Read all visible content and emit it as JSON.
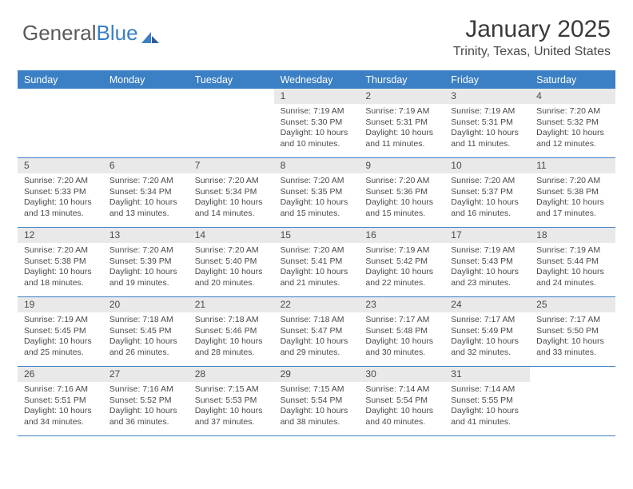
{
  "logo": {
    "part1": "General",
    "part2": "Blue"
  },
  "title": "January 2025",
  "location": "Trinity, Texas, United States",
  "header_bg": "#3b7fc4",
  "dow": [
    "Sunday",
    "Monday",
    "Tuesday",
    "Wednesday",
    "Thursday",
    "Friday",
    "Saturday"
  ],
  "weeks": [
    [
      null,
      null,
      null,
      {
        "n": "1",
        "sr": "7:19 AM",
        "ss": "5:30 PM",
        "dl": "10 hours and 10 minutes."
      },
      {
        "n": "2",
        "sr": "7:19 AM",
        "ss": "5:31 PM",
        "dl": "10 hours and 11 minutes."
      },
      {
        "n": "3",
        "sr": "7:19 AM",
        "ss": "5:31 PM",
        "dl": "10 hours and 11 minutes."
      },
      {
        "n": "4",
        "sr": "7:20 AM",
        "ss": "5:32 PM",
        "dl": "10 hours and 12 minutes."
      }
    ],
    [
      {
        "n": "5",
        "sr": "7:20 AM",
        "ss": "5:33 PM",
        "dl": "10 hours and 13 minutes."
      },
      {
        "n": "6",
        "sr": "7:20 AM",
        "ss": "5:34 PM",
        "dl": "10 hours and 13 minutes."
      },
      {
        "n": "7",
        "sr": "7:20 AM",
        "ss": "5:34 PM",
        "dl": "10 hours and 14 minutes."
      },
      {
        "n": "8",
        "sr": "7:20 AM",
        "ss": "5:35 PM",
        "dl": "10 hours and 15 minutes."
      },
      {
        "n": "9",
        "sr": "7:20 AM",
        "ss": "5:36 PM",
        "dl": "10 hours and 15 minutes."
      },
      {
        "n": "10",
        "sr": "7:20 AM",
        "ss": "5:37 PM",
        "dl": "10 hours and 16 minutes."
      },
      {
        "n": "11",
        "sr": "7:20 AM",
        "ss": "5:38 PM",
        "dl": "10 hours and 17 minutes."
      }
    ],
    [
      {
        "n": "12",
        "sr": "7:20 AM",
        "ss": "5:38 PM",
        "dl": "10 hours and 18 minutes."
      },
      {
        "n": "13",
        "sr": "7:20 AM",
        "ss": "5:39 PM",
        "dl": "10 hours and 19 minutes."
      },
      {
        "n": "14",
        "sr": "7:20 AM",
        "ss": "5:40 PM",
        "dl": "10 hours and 20 minutes."
      },
      {
        "n": "15",
        "sr": "7:20 AM",
        "ss": "5:41 PM",
        "dl": "10 hours and 21 minutes."
      },
      {
        "n": "16",
        "sr": "7:19 AM",
        "ss": "5:42 PM",
        "dl": "10 hours and 22 minutes."
      },
      {
        "n": "17",
        "sr": "7:19 AM",
        "ss": "5:43 PM",
        "dl": "10 hours and 23 minutes."
      },
      {
        "n": "18",
        "sr": "7:19 AM",
        "ss": "5:44 PM",
        "dl": "10 hours and 24 minutes."
      }
    ],
    [
      {
        "n": "19",
        "sr": "7:19 AM",
        "ss": "5:45 PM",
        "dl": "10 hours and 25 minutes."
      },
      {
        "n": "20",
        "sr": "7:18 AM",
        "ss": "5:45 PM",
        "dl": "10 hours and 26 minutes."
      },
      {
        "n": "21",
        "sr": "7:18 AM",
        "ss": "5:46 PM",
        "dl": "10 hours and 28 minutes."
      },
      {
        "n": "22",
        "sr": "7:18 AM",
        "ss": "5:47 PM",
        "dl": "10 hours and 29 minutes."
      },
      {
        "n": "23",
        "sr": "7:17 AM",
        "ss": "5:48 PM",
        "dl": "10 hours and 30 minutes."
      },
      {
        "n": "24",
        "sr": "7:17 AM",
        "ss": "5:49 PM",
        "dl": "10 hours and 32 minutes."
      },
      {
        "n": "25",
        "sr": "7:17 AM",
        "ss": "5:50 PM",
        "dl": "10 hours and 33 minutes."
      }
    ],
    [
      {
        "n": "26",
        "sr": "7:16 AM",
        "ss": "5:51 PM",
        "dl": "10 hours and 34 minutes."
      },
      {
        "n": "27",
        "sr": "7:16 AM",
        "ss": "5:52 PM",
        "dl": "10 hours and 36 minutes."
      },
      {
        "n": "28",
        "sr": "7:15 AM",
        "ss": "5:53 PM",
        "dl": "10 hours and 37 minutes."
      },
      {
        "n": "29",
        "sr": "7:15 AM",
        "ss": "5:54 PM",
        "dl": "10 hours and 38 minutes."
      },
      {
        "n": "30",
        "sr": "7:14 AM",
        "ss": "5:54 PM",
        "dl": "10 hours and 40 minutes."
      },
      {
        "n": "31",
        "sr": "7:14 AM",
        "ss": "5:55 PM",
        "dl": "10 hours and 41 minutes."
      },
      null
    ]
  ],
  "labels": {
    "sunrise": "Sunrise: ",
    "sunset": "Sunset: ",
    "daylight": "Daylight: "
  }
}
